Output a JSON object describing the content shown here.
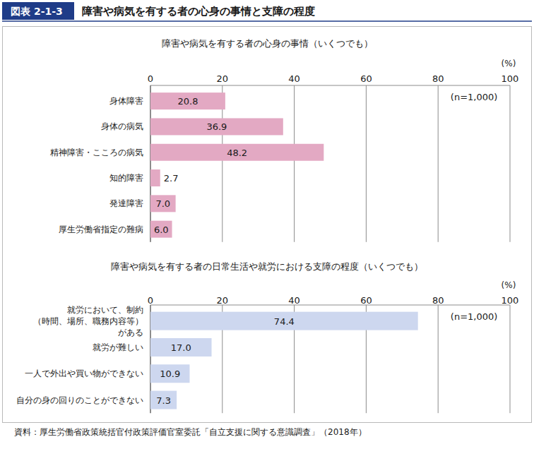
{
  "header": {
    "label": "図表 2-1-3",
    "title": "障害や病気を有する者の心身の事情と支障の程度"
  },
  "chart_data": [
    {
      "type": "bar",
      "orientation": "horizontal",
      "title": "障害や病気を有する者の心身の事情（いくつでも）",
      "xlabel": "(%)",
      "annotation": "(n=1,000)",
      "categories": [
        "身体障害",
        "身体の病気",
        "精神障害・こころの病気",
        "知的障害",
        "発達障害",
        "厚生労働省指定の難病"
      ],
      "values": [
        20.8,
        36.9,
        48.2,
        2.7,
        7.0,
        6.0
      ],
      "value_labels": [
        "20.8",
        "36.9",
        "48.2",
        "2.7",
        "7.0",
        "6.0"
      ],
      "color": "#e3a9c3",
      "xlim": [
        0,
        100
      ],
      "xticks": [
        0,
        20,
        40,
        60,
        80,
        100
      ],
      "grid": true,
      "data_labels": true
    },
    {
      "type": "bar",
      "orientation": "horizontal",
      "title": "障害や病気を有する者の日常生活や就労における支障の程度（いくつでも）",
      "xlabel": "(%)",
      "annotation": "(n=1,000)",
      "categories": [
        "就労において、制約\n（時間、場所、職務内容等）\nがある",
        "就労が難しい",
        "一人で外出や買い物ができない",
        "自分の身の回りのことができない"
      ],
      "values": [
        74.4,
        17.0,
        10.9,
        7.3
      ],
      "value_labels": [
        "74.4",
        "17.0",
        "10.9",
        "7.3"
      ],
      "color": "#cdd7ef",
      "xlim": [
        0,
        100
      ],
      "xticks": [
        0,
        20,
        40,
        60,
        80,
        100
      ],
      "grid": true,
      "data_labels": true
    }
  ],
  "source": "資料：厚生労働省政策統括官付政策評価官室委託「自立支援に関する意識調査」（2018年）"
}
